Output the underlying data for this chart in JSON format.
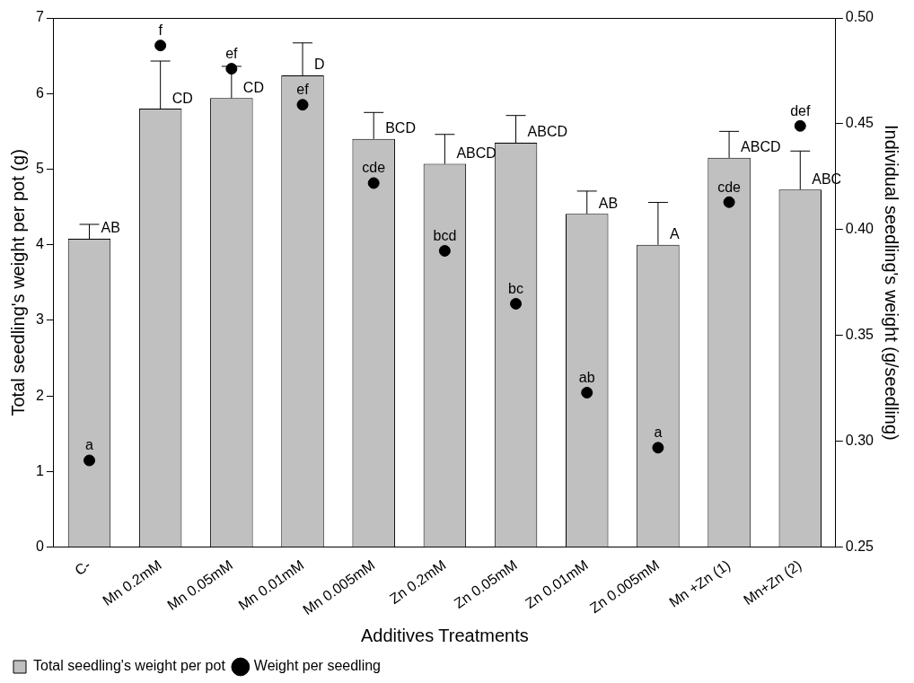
{
  "chart_data": {
    "type": "bar",
    "xlabel": "Additives Treatments",
    "ylabel": "Total seedling's weight per pot (g)",
    "y2label": "Individual seedling's weight (g/seedling)",
    "categories": [
      "C-",
      "Mn 0.2mM",
      "Mn 0.05mM",
      "Mn 0.01mM",
      "Mn 0.005mM",
      "Zn 0.2mM",
      "Zn 0.05mM",
      "Zn 0.01mM",
      "Zn 0.005mM",
      "Mn +Zn (1)",
      "Mn+Zn (2)"
    ],
    "series": [
      {
        "name": "Total seedling's weight per pot",
        "color": "#c0c0c0",
        "values": [
          4.08,
          5.8,
          5.94,
          6.24,
          5.4,
          5.07,
          5.35,
          4.41,
          4.0,
          5.15,
          4.73
        ],
        "value_labels": [
          "AB",
          "CD",
          "CD",
          "D",
          "BCD",
          "ABCD",
          "ABCD",
          "AB",
          "A",
          "ABCD",
          "ABC"
        ],
        "errors": [
          [
            4.08,
            4.27
          ],
          [
            5.8,
            6.43
          ],
          [
            5.94,
            6.36
          ],
          [
            6.24,
            6.67
          ],
          [
            5.4,
            5.75
          ],
          [
            5.07,
            5.46
          ],
          [
            5.35,
            5.71
          ],
          [
            4.41,
            4.71
          ],
          [
            4.0,
            4.56
          ],
          [
            5.15,
            5.5
          ],
          [
            4.73,
            5.24
          ]
        ]
      },
      {
        "name": "Weight per seedling",
        "type": "scatter",
        "axis": "y2",
        "color": "#000000",
        "marker": "circle",
        "value_labels": [
          "a",
          "f",
          "ef",
          "ef",
          "cde",
          "bcd",
          "bc",
          "ab",
          "a",
          "cde",
          "def"
        ],
        "values": [
          0.291,
          0.487,
          0.476,
          0.459,
          0.422,
          0.39,
          0.365,
          0.323,
          0.297,
          0.413,
          0.449
        ]
      }
    ],
    "ylim": [
      0,
      7
    ],
    "yticks": [
      0,
      1,
      2,
      3,
      4,
      5,
      6,
      7
    ],
    "y2lim": [
      0.25,
      0.5
    ],
    "y2ticks": [
      0.25,
      {
        "value": 0.3,
        "label": "0.30"
      },
      0.35,
      {
        "value": 0.4,
        "label": "0.40"
      },
      0.45,
      {
        "value": 0.5,
        "label": "0.50"
      }
    ],
    "grid": false,
    "legend": "bottom left"
  }
}
